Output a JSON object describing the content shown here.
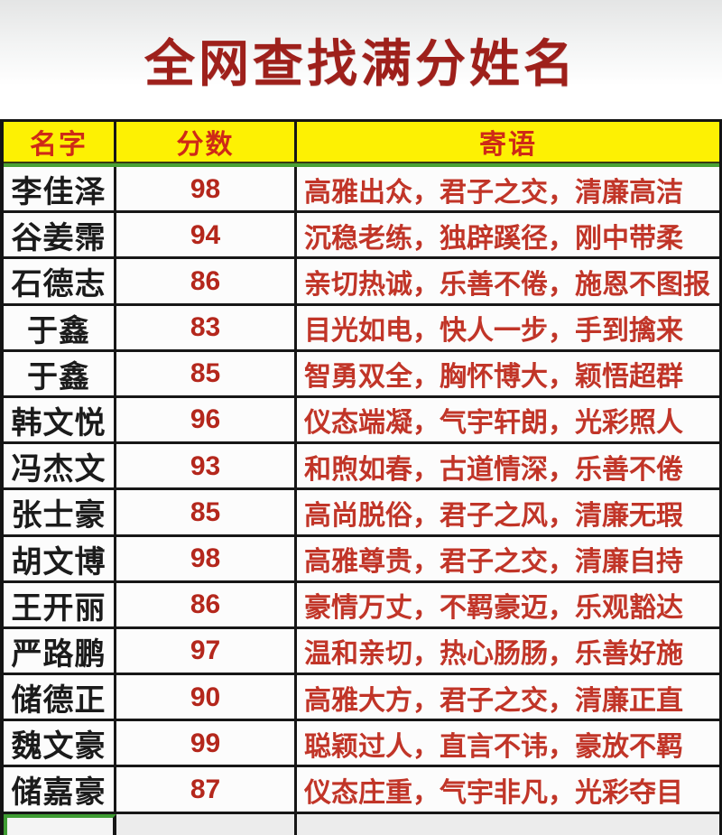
{
  "title": "全网查找满分姓名",
  "table": {
    "headers": {
      "name": "名字",
      "score": "分数",
      "message": "寄语"
    },
    "rows": [
      {
        "name": "李佳泽",
        "score": 98,
        "message": "高雅出众，君子之交，清廉高洁"
      },
      {
        "name": "谷姜霈",
        "score": 94,
        "message": "沉稳老练，独辟蹊径，刚中带柔"
      },
      {
        "name": "石德志",
        "score": 86,
        "message": "亲切热诚，乐善不倦，施恩不图报"
      },
      {
        "name": "于鑫",
        "score": 83,
        "message": "目光如电，快人一步，手到擒来"
      },
      {
        "name": "于鑫",
        "score": 85,
        "message": "智勇双全，胸怀博大，颖悟超群"
      },
      {
        "name": "韩文悦",
        "score": 96,
        "message": "仪态端凝，气宇轩朗，光彩照人"
      },
      {
        "name": "冯杰文",
        "score": 93,
        "message": "和煦如春，古道情深，乐善不倦"
      },
      {
        "name": "张士豪",
        "score": 85,
        "message": "高尚脱俗，君子之风，清廉无瑕"
      },
      {
        "name": "胡文博",
        "score": 98,
        "message": "高雅尊贵，君子之交，清廉自持"
      },
      {
        "name": "王开丽",
        "score": 86,
        "message": "豪情万丈，不羁豪迈，乐观豁达"
      },
      {
        "name": "严路鹏",
        "score": 97,
        "message": "温和亲切，热心肠肠，乐善好施"
      },
      {
        "name": "储德正",
        "score": 90,
        "message": "高雅大方，君子之交，清廉正直"
      },
      {
        "name": "魏文豪",
        "score": 99,
        "message": "聪颖过人，直言不讳，豪放不羁"
      },
      {
        "name": "储嘉豪",
        "score": 87,
        "message": "仪态庄重，气宇非凡，光彩夺目"
      }
    ]
  },
  "colors": {
    "title_red": "#9e201b",
    "header_bg_yellow": "#fdf103",
    "header_text_red": "#ce2a17",
    "name_black": "#1b1b1b",
    "score_red": "#b4271c",
    "message_red": "#c13528",
    "accent_green": "#4aa234",
    "selection_green": "#3f9c33",
    "grid_black": "#161616"
  }
}
